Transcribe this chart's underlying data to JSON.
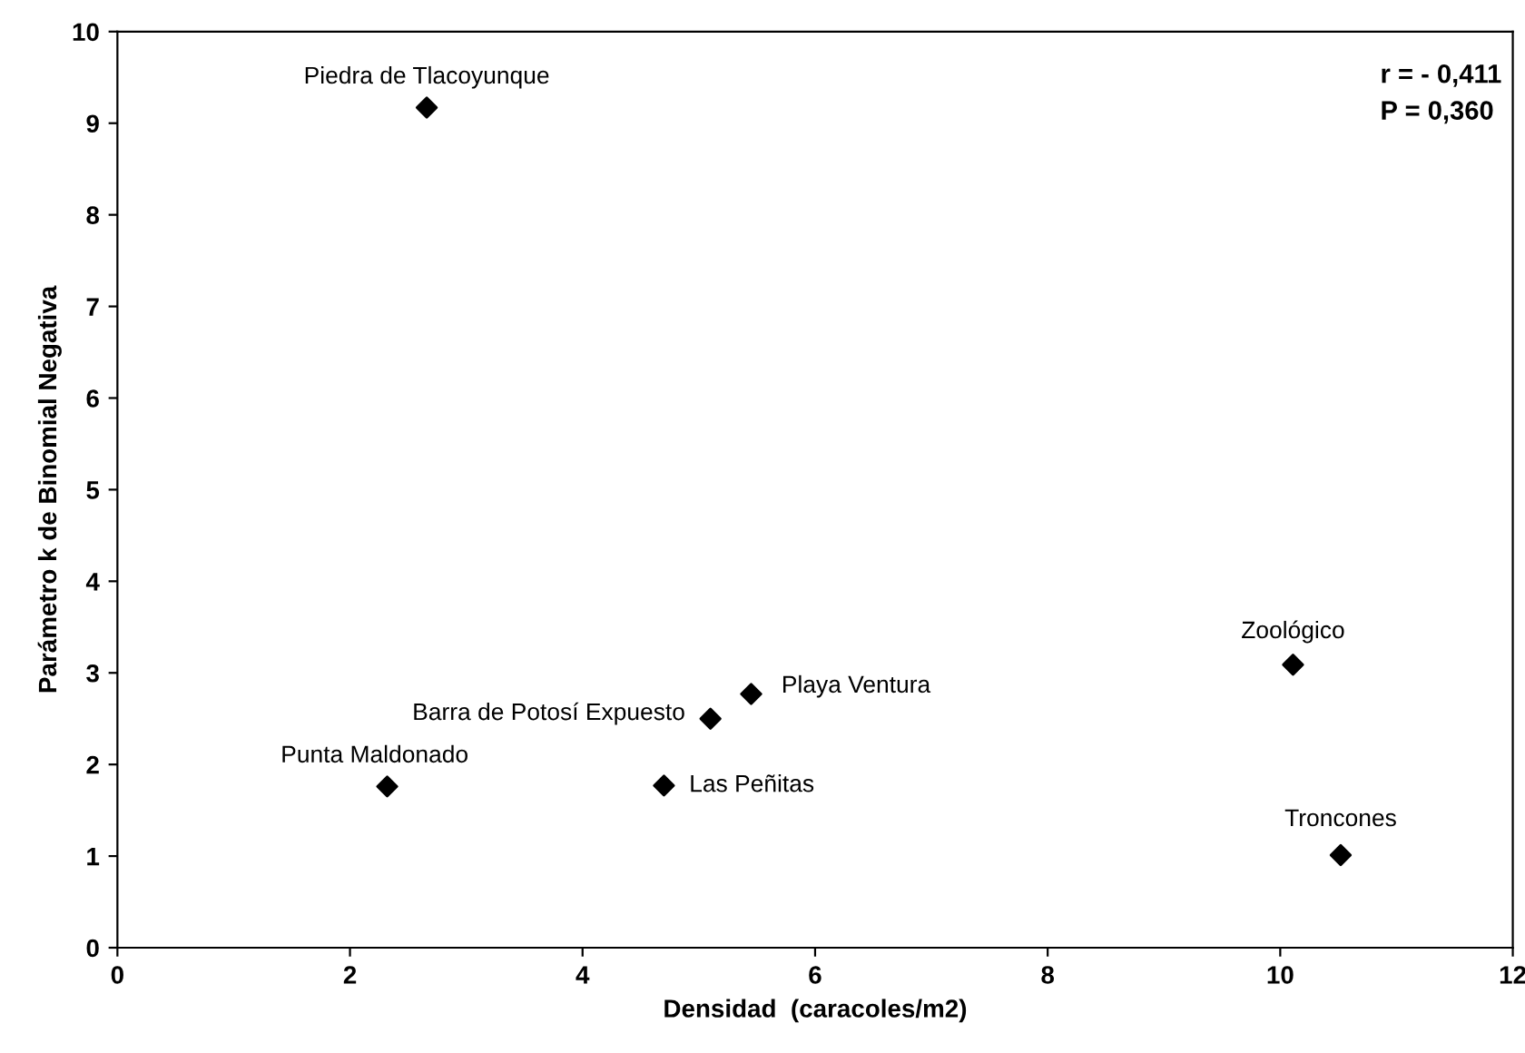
{
  "chart_data": {
    "type": "scatter",
    "xlabel": "Densidad  (caracoles/m2)",
    "ylabel": "Parámetro k de Binomial Negativa",
    "x": [
      2.66,
      2.32,
      4.7,
      5.1,
      5.45,
      10.11,
      10.52
    ],
    "series": [
      {
        "color": "#000000",
        "values": [
          9.17,
          1.76,
          1.77,
          2.5,
          2.77,
          3.09,
          1.01
        ]
      }
    ],
    "marker": "diamond",
    "grid": false,
    "legend": false,
    "xlim": [
      0,
      12
    ],
    "xticks": [
      0,
      2,
      4,
      6,
      8,
      10,
      12
    ],
    "ylim": [
      0,
      10
    ],
    "yticks": [
      0,
      1,
      2,
      3,
      4,
      5,
      6,
      7,
      8,
      9,
      10
    ],
    "annotations": [
      {
        "text": "Piedra de Tlacoyunque",
        "x": 2.66,
        "y": 9.17
      },
      {
        "text": "Punta Maldonado",
        "x": 2.32,
        "y": 1.76
      },
      {
        "text": "Las Peñitas",
        "x": 4.7,
        "y": 1.77
      },
      {
        "text": "Barra de Potosí Expuesto",
        "x": 5.1,
        "y": 2.5
      },
      {
        "text": "Playa Ventura",
        "x": 5.45,
        "y": 2.77
      },
      {
        "text": "Zoológico",
        "x": 10.11,
        "y": 3.09
      },
      {
        "text": "Troncones",
        "x": 10.52,
        "y": 1.01
      },
      "r = - 0,411",
      "P = 0,360"
    ]
  }
}
